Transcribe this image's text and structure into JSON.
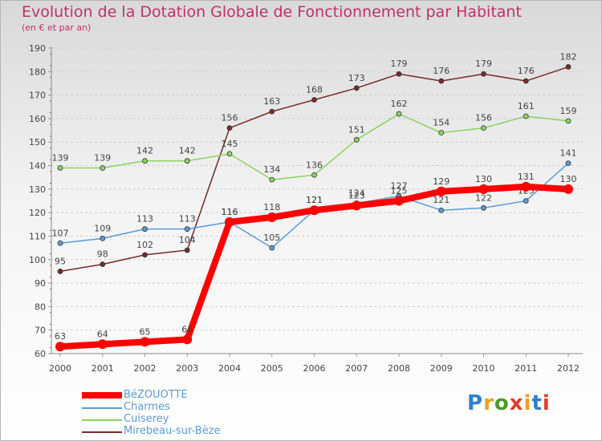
{
  "header": {
    "title": "Evolution de la Dotation Globale de Fonctionnement par Habitant",
    "subtitle": "(en € et par an)"
  },
  "logo": {
    "letters": [
      "P",
      "r",
      "o",
      "x",
      "i",
      "t",
      "i"
    ],
    "colors": [
      "#2f7fcf",
      "#f0a020",
      "#4a9a2a",
      "#e03c2c",
      "#f0a020",
      "#2f7fcf",
      "#e03c2c"
    ]
  },
  "chart_data": {
    "type": "line",
    "title": "Evolution de la Dotation Globale de Fonctionnement par Habitant",
    "subtitle": "(en € et par an)",
    "xlabel": "",
    "ylabel": "",
    "ylim": [
      60,
      190
    ],
    "yticks": [
      60,
      70,
      80,
      90,
      100,
      110,
      120,
      130,
      140,
      150,
      160,
      170,
      180,
      190
    ],
    "categories": [
      "2000",
      "2001",
      "2002",
      "2003",
      "2004",
      "2005",
      "2006",
      "2007",
      "2008",
      "2009",
      "2010",
      "2011",
      "2012"
    ],
    "series": [
      {
        "name": "Mirebeau-sur-Bèze",
        "color": "#7a2a2a",
        "values": [
          95,
          98,
          102,
          104,
          156,
          163,
          168,
          173,
          179,
          176,
          179,
          176,
          182
        ]
      },
      {
        "name": "Cuiserey",
        "color": "#8dd35f",
        "values": [
          139,
          139,
          142,
          142,
          145,
          134,
          136,
          151,
          162,
          154,
          156,
          161,
          159
        ]
      },
      {
        "name": "Charmes",
        "color": "#5b9bd5",
        "values": [
          107,
          109,
          113,
          113,
          116,
          105,
          121,
          124,
          127,
          121,
          122,
          125,
          141
        ]
      },
      {
        "name": "BéZOUOTTE",
        "color": "#ff0000",
        "values": [
          63,
          64,
          65,
          66,
          116,
          118,
          121,
          123,
          125,
          129,
          130,
          131,
          130
        ]
      }
    ],
    "legend": [
      "BéZOUOTTE",
      "Charmes",
      "Cuiserey",
      "Mirebeau-sur-Bèze"
    ],
    "legend_position": "bottom-left"
  }
}
